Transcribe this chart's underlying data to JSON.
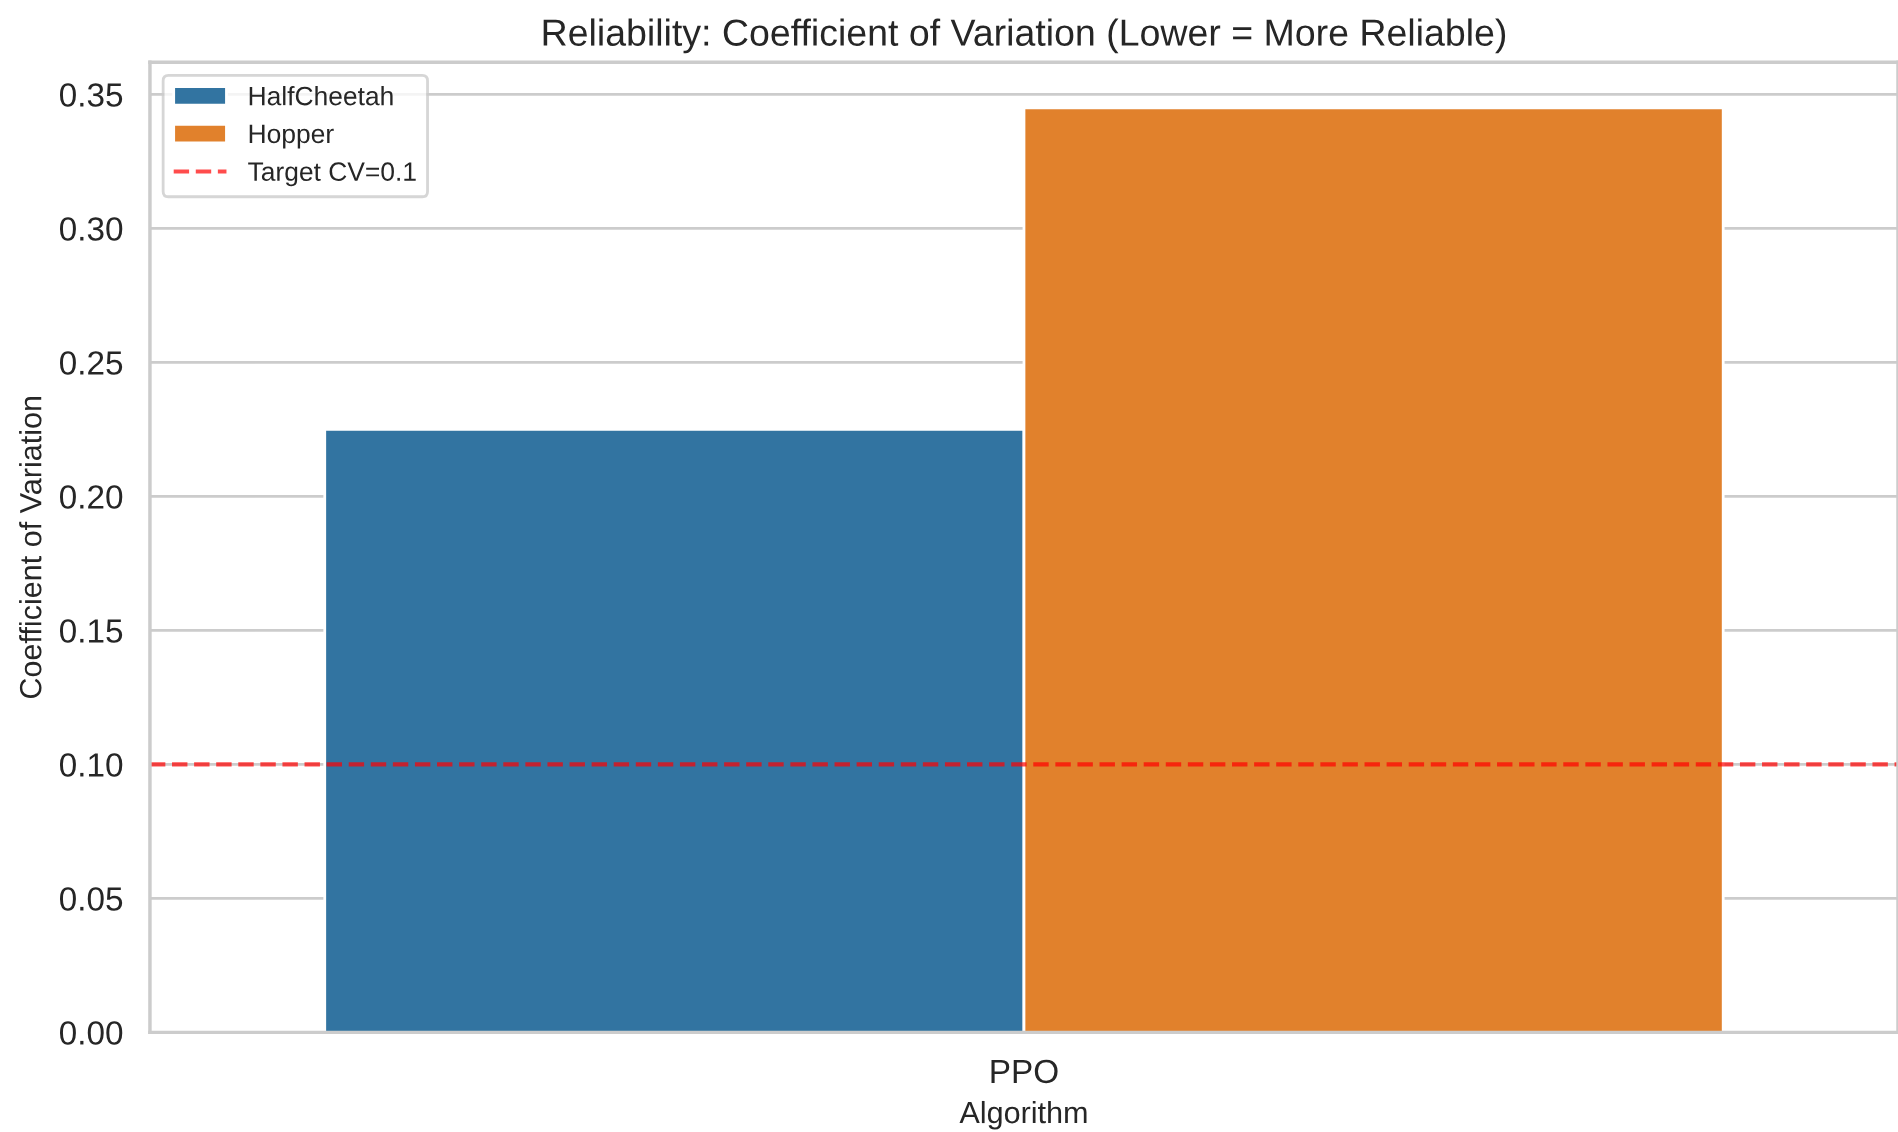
{
  "chart_data": {
    "type": "bar",
    "title": "Reliability: Coefficient of Variation (Lower = More Reliable)",
    "xlabel": "Algorithm",
    "ylabel": "Coefficient of Variation",
    "categories": [
      "PPO"
    ],
    "series": [
      {
        "name": "HalfCheetah",
        "color": "#3274a1",
        "values": [
          0.225
        ]
      },
      {
        "name": "Hopper",
        "color": "#e1812c",
        "values": [
          0.345
        ]
      }
    ],
    "ref_lines": [
      {
        "axis": "y",
        "value": 0.1,
        "label": "Target CV=0.1",
        "color": "#ff0000",
        "line_style": "dashed"
      }
    ],
    "ylim": [
      0,
      0.362
    ],
    "yticks": [
      {
        "value": 0,
        "label": "0.00"
      },
      {
        "value": 0.05,
        "label": "0.05"
      },
      {
        "value": 0.1,
        "label": "0.10"
      },
      {
        "value": 0.15,
        "label": "0.15"
      },
      {
        "value": 0.2,
        "label": "0.20"
      },
      {
        "value": 0.25,
        "label": "0.25"
      },
      {
        "value": 0.3,
        "label": "0.30"
      },
      {
        "value": 0.35,
        "label": "0.35"
      }
    ],
    "grid": "y",
    "legend": "top left"
  }
}
